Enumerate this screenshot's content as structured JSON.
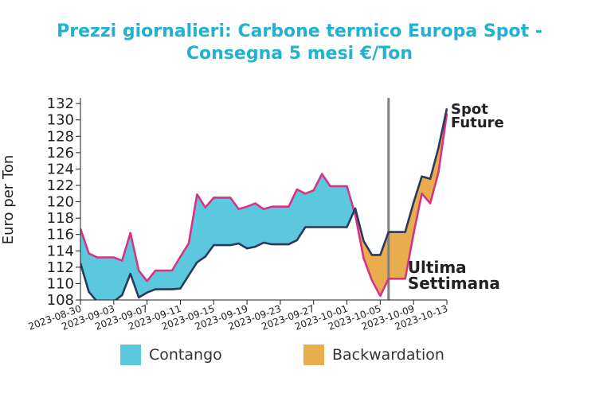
{
  "title_line1": "Prezzi giornalieri: Carbone termico Europa Spot -",
  "title_line2": "Consegna 5 mesi €/Ton",
  "chart_data": {
    "type": "area",
    "ylabel": "Euro per Ton",
    "ylim": [
      108,
      132.5
    ],
    "yticks": [
      108,
      110,
      112,
      114,
      116,
      118,
      120,
      122,
      124,
      126,
      128,
      130,
      132
    ],
    "xlim": [
      "2023-08-30",
      "2023-10-13"
    ],
    "xticks": [
      "2023-08-30",
      "2023-09-03",
      "2023-09-07",
      "2023-09-11",
      "2023-09-15",
      "2023-09-19",
      "2023-09-23",
      "2023-09-27",
      "2023-10-01",
      "2023-10-05",
      "2023-10-09",
      "2023-10-13"
    ],
    "x": [
      "2023-08-30",
      "2023-08-31",
      "2023-09-01",
      "2023-09-02",
      "2023-09-03",
      "2023-09-04",
      "2023-09-05",
      "2023-09-06",
      "2023-09-07",
      "2023-09-08",
      "2023-09-09",
      "2023-09-10",
      "2023-09-11",
      "2023-09-12",
      "2023-09-13",
      "2023-09-14",
      "2023-09-15",
      "2023-09-16",
      "2023-09-17",
      "2023-09-18",
      "2023-09-19",
      "2023-09-20",
      "2023-09-21",
      "2023-09-22",
      "2023-09-23",
      "2023-09-24",
      "2023-09-25",
      "2023-09-26",
      "2023-09-27",
      "2023-09-28",
      "2023-09-29",
      "2023-09-30",
      "2023-10-01",
      "2023-10-02",
      "2023-10-03",
      "2023-10-04",
      "2023-10-05",
      "2023-10-06",
      "2023-10-07",
      "2023-10-08",
      "2023-10-09",
      "2023-10-10",
      "2023-10-11",
      "2023-10-12",
      "2023-10-13"
    ],
    "series": [
      {
        "name": "Spot",
        "color": "#2b3a5c",
        "values": [
          112.5,
          109.0,
          107.8,
          107.8,
          107.8,
          108.6,
          111.2,
          108.3,
          108.9,
          109.3,
          109.3,
          109.3,
          109.4,
          111.0,
          112.6,
          113.3,
          114.7,
          114.7,
          114.7,
          114.9,
          114.3,
          114.5,
          115.0,
          114.8,
          114.8,
          114.8,
          115.3,
          116.9,
          116.9,
          116.9,
          116.9,
          116.9,
          116.9,
          119.2,
          115.2,
          113.5,
          113.5,
          116.3,
          116.3,
          116.3,
          119.9,
          123.1,
          122.8,
          126.6,
          131.4
        ]
      },
      {
        "name": "Future",
        "color": "#d63384",
        "values": [
          116.7,
          113.7,
          113.2,
          113.2,
          113.2,
          112.8,
          116.2,
          111.6,
          110.3,
          111.6,
          111.6,
          111.6,
          113.3,
          114.9,
          120.9,
          119.3,
          120.5,
          120.5,
          120.5,
          119.1,
          119.4,
          119.8,
          119.1,
          119.4,
          119.4,
          119.4,
          121.5,
          121.0,
          121.4,
          123.4,
          121.9,
          121.9,
          121.9,
          118.4,
          113.1,
          110.4,
          108.5,
          110.6,
          110.6,
          110.6,
          116.1,
          121.0,
          119.8,
          123.6,
          130.8
        ]
      }
    ],
    "fills": [
      {
        "name": "Contango",
        "color": "#5bc8de"
      },
      {
        "name": "Backwardation",
        "color": "#eaad4d"
      }
    ],
    "vline": {
      "x": "2023-10-06",
      "label_line1": "Ultima",
      "label_line2": "Settimana",
      "color": "#808080"
    },
    "legend_position": "bottom"
  }
}
